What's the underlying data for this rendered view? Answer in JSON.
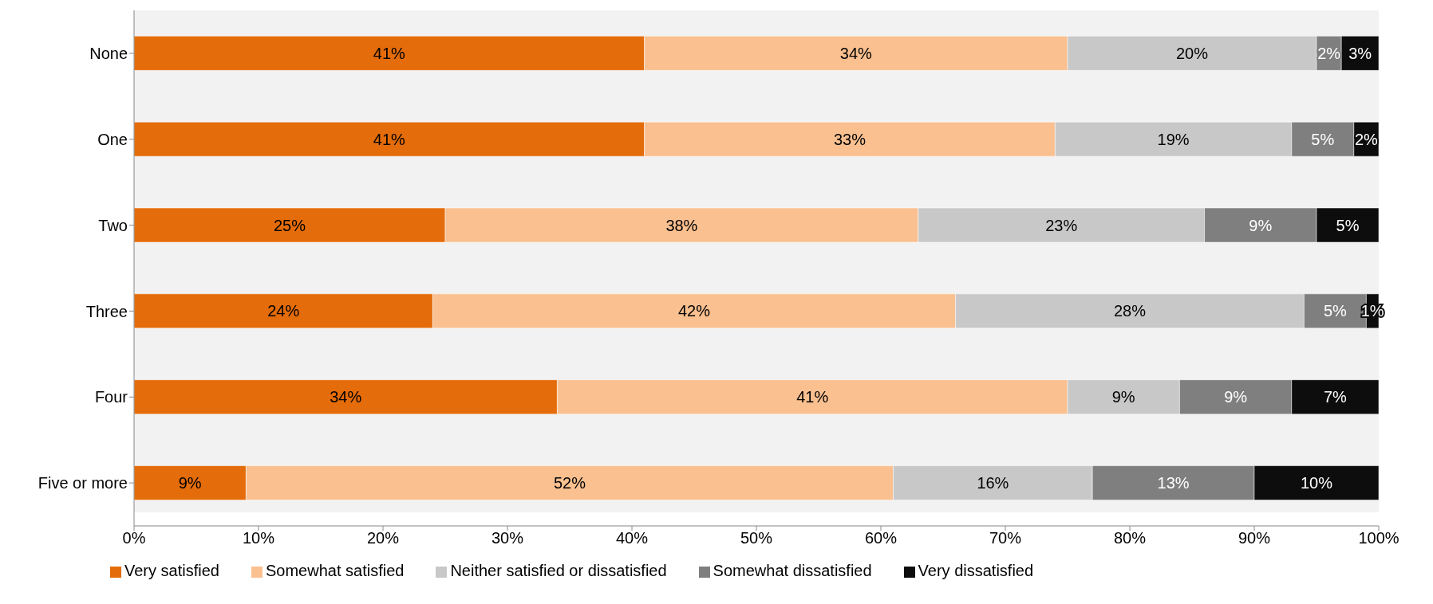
{
  "chart_data": {
    "type": "bar",
    "orientation": "horizontal",
    "stacked": true,
    "categories": [
      "None",
      "One",
      "Two",
      "Three",
      "Four",
      "Five or more"
    ],
    "series": [
      {
        "name": "Very satisfied",
        "color": "#e46c0a",
        "values": [
          41,
          41,
          25,
          24,
          34,
          9
        ],
        "value_labels": [
          "41%",
          "41%",
          "25%",
          "24%",
          "34%",
          "9%"
        ]
      },
      {
        "name": "Somewhat satisfied",
        "color": "#fac090",
        "values": [
          34,
          33,
          38,
          42,
          41,
          52
        ],
        "value_labels": [
          "34%",
          "33%",
          "38%",
          "42%",
          "41%",
          "52%"
        ]
      },
      {
        "name": "Neither satisfied or dissatisfied",
        "color": "#c8c8c8",
        "values": [
          20,
          19,
          23,
          28,
          9,
          16
        ],
        "value_labels": [
          "20%",
          "19%",
          "23%",
          "28%",
          "9%",
          "16%"
        ]
      },
      {
        "name": "Somewhat dissatisfied",
        "color": "#7f7f7f",
        "values": [
          2,
          5,
          9,
          5,
          9,
          13
        ],
        "value_labels": [
          "2%",
          "5%",
          "9%",
          "5%",
          "9%",
          "13%"
        ]
      },
      {
        "name": "Very dissatisfied",
        "color": "#0d0d0d",
        "values": [
          3,
          2,
          5,
          1,
          7,
          10
        ],
        "value_labels": [
          "3%",
          "2%",
          "5%",
          "1%",
          "7%",
          "10%"
        ]
      }
    ],
    "xlim": [
      0,
      100
    ],
    "xticks": [
      {
        "value": 0,
        "label": "0%"
      },
      {
        "value": 10,
        "label": "10%"
      },
      {
        "value": 20,
        "label": "20%"
      },
      {
        "value": 30,
        "label": "30%"
      },
      {
        "value": 40,
        "label": "40%"
      },
      {
        "value": 50,
        "label": "50%"
      },
      {
        "value": 60,
        "label": "60%"
      },
      {
        "value": 70,
        "label": "70%"
      },
      {
        "value": 80,
        "label": "80%"
      },
      {
        "value": 90,
        "label": "90%"
      },
      {
        "value": 100,
        "label": "100%"
      }
    ],
    "grid": false,
    "legend": "bottom"
  }
}
